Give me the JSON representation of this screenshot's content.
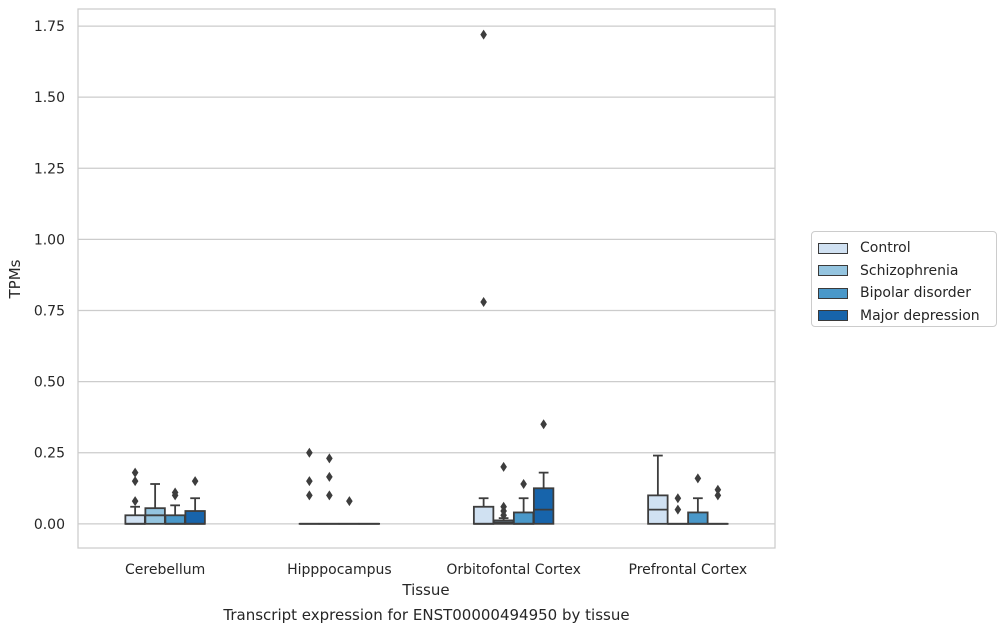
{
  "chart_data": {
    "type": "box",
    "title": "Transcript expression for ENST00000494950 by tissue",
    "xlabel": "Tissue",
    "ylabel": "TPMs",
    "ylim": [
      -0.085,
      1.81
    ],
    "yticks": [
      "0.00",
      "0.25",
      "0.50",
      "0.75",
      "1.00",
      "1.25",
      "1.50",
      "1.75"
    ],
    "ytick_values": [
      0,
      0.25,
      0.5,
      0.75,
      1.0,
      1.25,
      1.5,
      1.75
    ],
    "grid": "horizontal",
    "legend_position": "right",
    "categories": [
      "Cerebellum",
      "Hipppocampus",
      "Orbitofontal Cortex",
      "Prefrontal Cortex"
    ],
    "series": [
      {
        "name": "Control",
        "color": "#d0e1f2",
        "boxes": [
          {
            "min": 0,
            "q1": 0,
            "median": 0,
            "q3": 0.03,
            "max": 0.06,
            "outliers": [
              0.08,
              0.15,
              0.18
            ]
          },
          {
            "min": 0,
            "q1": 0,
            "median": 0,
            "q3": 0,
            "max": 0,
            "outliers": [
              0.1,
              0.15,
              0.25
            ]
          },
          {
            "min": 0,
            "q1": 0,
            "median": 0,
            "q3": 0.06,
            "max": 0.09,
            "outliers": [
              0.78,
              1.72
            ]
          },
          {
            "min": 0,
            "q1": 0,
            "median": 0.05,
            "q3": 0.1,
            "max": 0.24,
            "outliers": []
          }
        ]
      },
      {
        "name": "Schizophrenia",
        "color": "#94c4df",
        "boxes": [
          {
            "min": 0,
            "q1": 0,
            "median": 0.03,
            "q3": 0.055,
            "max": 0.14,
            "outliers": []
          },
          {
            "min": 0,
            "q1": 0,
            "median": 0,
            "q3": 0,
            "max": 0,
            "outliers": [
              0.1,
              0.165,
              0.23
            ]
          },
          {
            "min": 0,
            "q1": 0,
            "median": 0.005,
            "q3": 0.012,
            "max": 0.02,
            "outliers": [
              0.03,
              0.045,
              0.06,
              0.2
            ]
          },
          {
            "min": 0,
            "q1": 0,
            "median": 0,
            "q3": 0,
            "max": 0,
            "outliers": [
              0.05,
              0.09
            ]
          }
        ]
      },
      {
        "name": "Bipolar disorder",
        "color": "#4a98c9",
        "boxes": [
          {
            "min": 0,
            "q1": 0,
            "median": 0,
            "q3": 0.03,
            "max": 0.065,
            "outliers": [
              0.1,
              0.11
            ]
          },
          {
            "min": 0,
            "q1": 0,
            "median": 0,
            "q3": 0,
            "max": 0,
            "outliers": [
              0.08
            ]
          },
          {
            "min": 0,
            "q1": 0,
            "median": 0,
            "q3": 0.04,
            "max": 0.09,
            "outliers": [
              0.14
            ]
          },
          {
            "min": 0,
            "q1": 0,
            "median": 0,
            "q3": 0.04,
            "max": 0.09,
            "outliers": [
              0.16
            ]
          }
        ]
      },
      {
        "name": "Major depression",
        "color": "#1764ab",
        "boxes": [
          {
            "min": 0,
            "q1": 0,
            "median": 0,
            "q3": 0.045,
            "max": 0.09,
            "outliers": [
              0.15
            ]
          },
          {
            "min": 0,
            "q1": 0,
            "median": 0,
            "q3": 0,
            "max": 0,
            "outliers": []
          },
          {
            "min": 0,
            "q1": 0,
            "median": 0.05,
            "q3": 0.125,
            "max": 0.18,
            "outliers": [
              0.35
            ]
          },
          {
            "min": 0,
            "q1": 0,
            "median": 0,
            "q3": 0,
            "max": 0,
            "outliers": [
              0.1,
              0.12
            ]
          }
        ]
      }
    ]
  }
}
